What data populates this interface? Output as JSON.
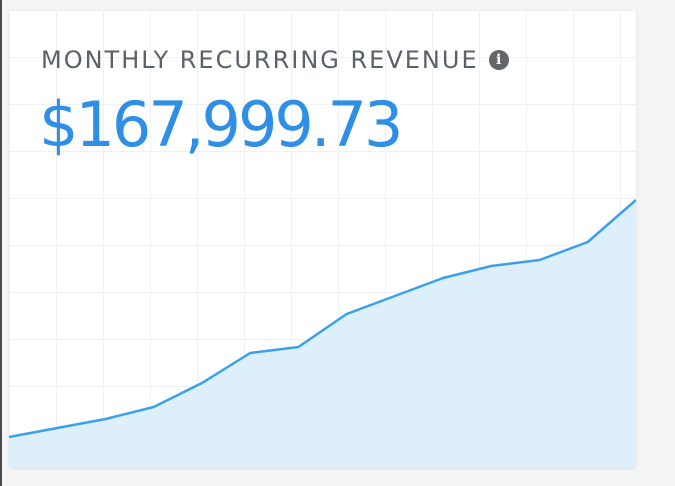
{
  "card": {
    "title": "MONTHLY RECURRING REVENUE",
    "info_icon": "info-icon",
    "value": "$167,999.73"
  },
  "colors": {
    "accent": "#2f8fe6",
    "area_fill": "#dceefc",
    "line": "#3aa0ee",
    "title": "#5b6168"
  },
  "chart_data": {
    "type": "area",
    "x": [
      1,
      2,
      3,
      4,
      5,
      6,
      7,
      8,
      9,
      10,
      11,
      12,
      13,
      14
    ],
    "series": [
      {
        "values": [
          0.0,
          0.03,
          0.06,
          0.1,
          0.18,
          0.28,
          0.3,
          0.41,
          0.47,
          0.53,
          0.57,
          0.59,
          0.65,
          0.79
        ]
      }
    ],
    "ylim": [
      0,
      1
    ],
    "grid": true,
    "legend": "none"
  }
}
